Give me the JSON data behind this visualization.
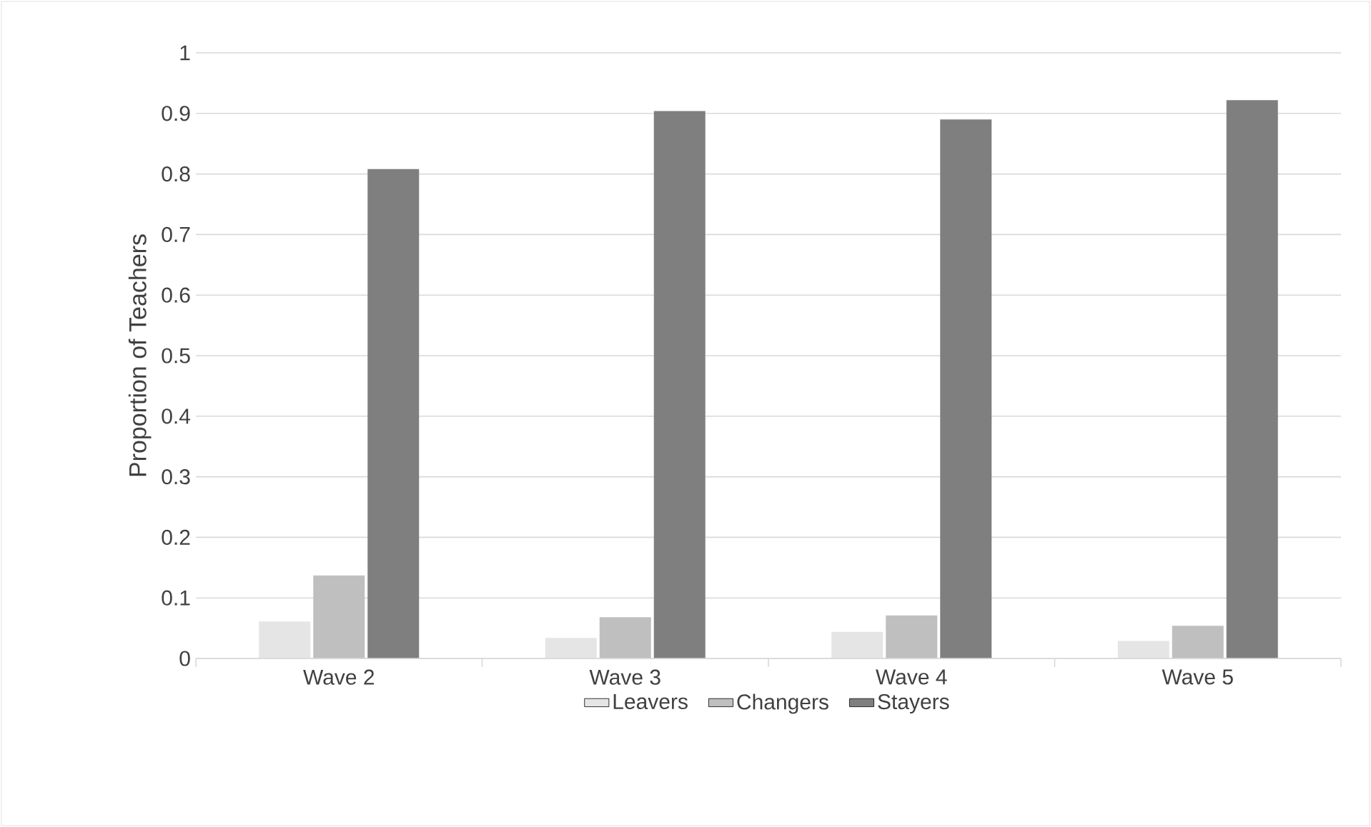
{
  "chart_data": {
    "type": "bar",
    "ylabel": "Proportion of Teachers",
    "categories": [
      "Wave 2",
      "Wave 3",
      "Wave 4",
      "Wave 5"
    ],
    "series": [
      {
        "name": "Leavers",
        "color": "#e5e5e5",
        "values": [
          0.061,
          0.034,
          0.044,
          0.029
        ]
      },
      {
        "name": "Changers",
        "color": "#bfbfbf",
        "values": [
          0.137,
          0.068,
          0.071,
          0.054
        ]
      },
      {
        "name": "Stayers",
        "color": "#7f7f7f",
        "values": [
          0.808,
          0.904,
          0.89,
          0.922
        ]
      }
    ],
    "ylim": [
      0,
      1
    ],
    "yticks": [
      0,
      0.1,
      0.2,
      0.3,
      0.4,
      0.5,
      0.6,
      0.7,
      0.8,
      0.9,
      1
    ],
    "grid": "y",
    "legend": "bottom"
  }
}
